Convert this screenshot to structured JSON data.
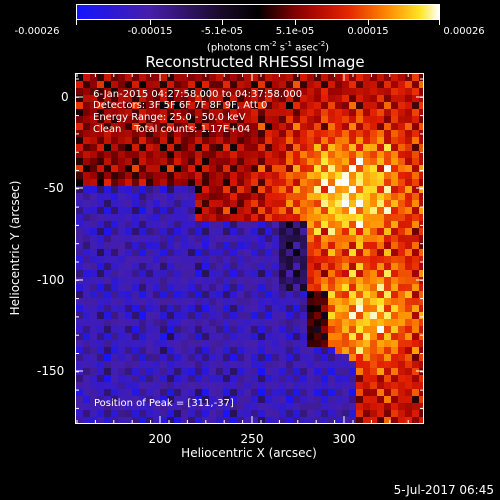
{
  "colorbar": {
    "tick_labels": [
      "-0.00026",
      "-0.00015",
      "-5.1e-05",
      "5.1e-05",
      "0.00015",
      "0.00026"
    ],
    "units_prefix": "(photons cm",
    "units_exp1": "-2",
    "units_mid1": " s",
    "units_exp2": "-1",
    "units_mid2": " asec",
    "units_exp3": "-2",
    "units_suffix": ")",
    "colormap": "blue-black-red-yellow-white"
  },
  "title": "Reconstructed RHESSI Image",
  "overlay": {
    "line1": " 6-Jan-2015 04:27:58.000 to 04:37:58.000",
    "line2": "Detectors: 3F 5F 6F 7F 8F 9F, Att 0",
    "line3": "Energy Range: 25.0 - 50.0 keV",
    "line4": "Clean    Total counts: 1.17E+04",
    "peak": "Position of Peak = [311,-37]"
  },
  "x_axis": {
    "label": "Heliocentric X (arcsec)",
    "ticks": [
      "200",
      "250",
      "300"
    ]
  },
  "y_axis": {
    "label": "Heliocentric Y (arcsec)",
    "ticks": [
      "0",
      "-50",
      "-100",
      "-150"
    ]
  },
  "timestamp": "5-Jul-2017 06:45",
  "chart_data": {
    "type": "heatmap",
    "title": "Reconstructed RHESSI Image",
    "xlabel": "Heliocentric X (arcsec)",
    "ylabel": "Heliocentric Y (arcsec)",
    "xlim": [
      153,
      342
    ],
    "ylim": [
      -178,
      12
    ],
    "color_range": [
      -0.00026,
      0.00026
    ],
    "peak": [
      311,
      -37
    ],
    "energy_range_kev": [
      25.0,
      50.0
    ],
    "total_counts": 11700
  }
}
